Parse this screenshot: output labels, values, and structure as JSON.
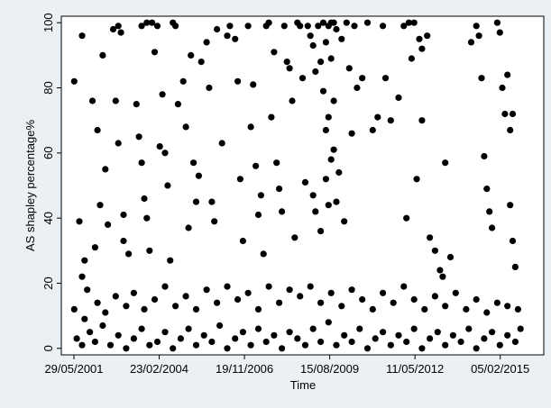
{
  "chart_data": {
    "type": "scatter",
    "title": "",
    "xlabel": "Time",
    "ylabel": "AS shapley percentage%",
    "x_type": "date",
    "x_ticks": [
      "29/05/2001",
      "23/02/2004",
      "19/11/2006",
      "15/08/2009",
      "11/05/2012",
      "05/02/2015"
    ],
    "y_ticks": [
      0,
      20,
      40,
      60,
      80,
      100
    ],
    "xlim": [
      "2001-01-01",
      "2016-06-30"
    ],
    "ylim": [
      -2,
      102
    ],
    "grid": false,
    "legend": "none",
    "marker_color": "#000000",
    "plot_background": "#ffffff",
    "figure_background": "#eaf0f3",
    "series": [
      {
        "name": "",
        "points": [
          [
            "2001-09-01",
            96
          ],
          [
            "2001-06-01",
            82
          ],
          [
            "2001-08-01",
            39
          ],
          [
            "2001-10-01",
            27
          ],
          [
            "2001-09-01",
            22
          ],
          [
            "2001-11-01",
            18
          ],
          [
            "2002-01-01",
            76
          ],
          [
            "2002-03-01",
            67
          ],
          [
            "2002-05-01",
            90
          ],
          [
            "2002-06-01",
            55
          ],
          [
            "2002-04-01",
            44
          ],
          [
            "2002-07-01",
            38
          ],
          [
            "2002-02-01",
            31
          ],
          [
            "2002-09-01",
            98
          ],
          [
            "2002-11-01",
            99
          ],
          [
            "2002-12-01",
            97
          ],
          [
            "2002-10-01",
            76
          ],
          [
            "2002-11-01",
            63
          ],
          [
            "2003-01-01",
            41
          ],
          [
            "2003-01-01",
            33
          ],
          [
            "2003-03-01",
            29
          ],
          [
            "2003-06-01",
            75
          ],
          [
            "2003-07-01",
            65
          ],
          [
            "2003-08-01",
            57
          ],
          [
            "2003-09-01",
            46
          ],
          [
            "2003-10-01",
            40
          ],
          [
            "2003-11-01",
            30
          ],
          [
            "2003-08-01",
            99
          ],
          [
            "2003-10-01",
            100
          ],
          [
            "2003-12-01",
            100
          ],
          [
            "2004-02-01",
            99
          ],
          [
            "2004-01-01",
            91
          ],
          [
            "2004-04-01",
            78
          ],
          [
            "2004-03-01",
            62
          ],
          [
            "2004-05-01",
            60
          ],
          [
            "2004-06-01",
            50
          ],
          [
            "2004-07-01",
            27
          ],
          [
            "2004-08-01",
            100
          ],
          [
            "2004-09-01",
            99
          ],
          [
            "2004-10-01",
            75
          ],
          [
            "2004-12-01",
            82
          ],
          [
            "2005-01-01",
            68
          ],
          [
            "2005-03-01",
            90
          ],
          [
            "2005-04-01",
            57
          ],
          [
            "2005-05-01",
            45
          ],
          [
            "2005-06-01",
            53
          ],
          [
            "2005-02-01",
            37
          ],
          [
            "2005-07-01",
            88
          ],
          [
            "2005-09-01",
            94
          ],
          [
            "2005-10-01",
            80
          ],
          [
            "2005-11-01",
            45
          ],
          [
            "2005-12-01",
            39
          ],
          [
            "2006-01-01",
            98
          ],
          [
            "2006-03-01",
            63
          ],
          [
            "2006-05-01",
            96
          ],
          [
            "2006-06-01",
            99
          ],
          [
            "2006-08-01",
            95
          ],
          [
            "2006-09-01",
            82
          ],
          [
            "2006-10-01",
            52
          ],
          [
            "2006-11-01",
            33
          ],
          [
            "2007-01-01",
            99
          ],
          [
            "2007-02-01",
            68
          ],
          [
            "2007-04-01",
            56
          ],
          [
            "2007-03-01",
            81
          ],
          [
            "2007-05-01",
            41
          ],
          [
            "2007-06-01",
            47
          ],
          [
            "2007-07-01",
            29
          ],
          [
            "2007-08-01",
            99
          ],
          [
            "2007-09-01",
            100
          ],
          [
            "2007-10-01",
            71
          ],
          [
            "2007-11-01",
            91
          ],
          [
            "2007-12-01",
            57
          ],
          [
            "2008-01-01",
            49
          ],
          [
            "2008-02-01",
            42
          ],
          [
            "2008-03-01",
            99
          ],
          [
            "2008-04-01",
            88
          ],
          [
            "2008-05-01",
            86
          ],
          [
            "2008-06-01",
            76
          ],
          [
            "2008-07-01",
            34
          ],
          [
            "2008-08-01",
            100
          ],
          [
            "2008-09-01",
            99
          ],
          [
            "2008-10-01",
            83
          ],
          [
            "2008-11-01",
            51
          ],
          [
            "2008-12-01",
            99
          ],
          [
            "2009-01-01",
            96
          ],
          [
            "2009-02-01",
            93
          ],
          [
            "2009-02-01",
            47
          ],
          [
            "2009-03-01",
            85
          ],
          [
            "2009-03-01",
            42
          ],
          [
            "2009-04-01",
            99
          ],
          [
            "2009-05-01",
            88
          ],
          [
            "2009-05-01",
            36
          ],
          [
            "2009-06-01",
            100
          ],
          [
            "2009-06-01",
            79
          ],
          [
            "2009-07-01",
            94
          ],
          [
            "2009-07-01",
            67
          ],
          [
            "2009-07-01",
            52
          ],
          [
            "2009-08-01",
            99
          ],
          [
            "2009-08-01",
            71
          ],
          [
            "2009-08-01",
            44
          ],
          [
            "2009-09-01",
            100
          ],
          [
            "2009-09-01",
            89
          ],
          [
            "2009-09-01",
            58
          ],
          [
            "2009-10-01",
            100
          ],
          [
            "2009-10-01",
            76
          ],
          [
            "2009-10-01",
            61
          ],
          [
            "2009-11-01",
            98
          ],
          [
            "2009-11-01",
            45
          ],
          [
            "2009-12-01",
            54
          ],
          [
            "2010-01-01",
            95
          ],
          [
            "2010-02-01",
            39
          ],
          [
            "2010-03-01",
            100
          ],
          [
            "2010-04-01",
            86
          ],
          [
            "2010-05-01",
            66
          ],
          [
            "2010-06-01",
            99
          ],
          [
            "2010-07-01",
            80
          ],
          [
            "2010-09-01",
            83
          ],
          [
            "2010-11-01",
            100
          ],
          [
            "2011-01-01",
            67
          ],
          [
            "2011-03-01",
            71
          ],
          [
            "2011-05-01",
            99
          ],
          [
            "2011-06-01",
            83
          ],
          [
            "2011-08-01",
            70
          ],
          [
            "2011-11-01",
            77
          ],
          [
            "2012-01-01",
            99
          ],
          [
            "2012-02-01",
            40
          ],
          [
            "2012-03-01",
            100
          ],
          [
            "2012-05-01",
            100
          ],
          [
            "2012-04-01",
            89
          ],
          [
            "2012-06-01",
            52
          ],
          [
            "2012-07-01",
            95
          ],
          [
            "2012-08-01",
            92
          ],
          [
            "2012-08-01",
            70
          ],
          [
            "2012-10-01",
            96
          ],
          [
            "2012-11-01",
            34
          ],
          [
            "2013-01-01",
            30
          ],
          [
            "2013-03-01",
            24
          ],
          [
            "2013-04-01",
            22
          ],
          [
            "2013-05-01",
            57
          ],
          [
            "2013-07-01",
            28
          ],
          [
            "2014-03-01",
            94
          ],
          [
            "2014-05-01",
            99
          ],
          [
            "2014-06-01",
            96
          ],
          [
            "2014-07-01",
            83
          ],
          [
            "2014-08-01",
            59
          ],
          [
            "2014-09-01",
            49
          ],
          [
            "2014-10-01",
            42
          ],
          [
            "2014-11-01",
            37
          ],
          [
            "2015-01-01",
            100
          ],
          [
            "2015-02-01",
            97
          ],
          [
            "2015-03-01",
            80
          ],
          [
            "2015-04-01",
            72
          ],
          [
            "2015-05-01",
            84
          ],
          [
            "2015-06-01",
            67
          ],
          [
            "2015-06-01",
            44
          ],
          [
            "2015-07-01",
            72
          ],
          [
            "2015-07-01",
            33
          ],
          [
            "2015-08-01",
            25
          ],
          [
            "2001-06-01",
            12
          ],
          [
            "2001-10-01",
            9
          ],
          [
            "2002-03-01",
            14
          ],
          [
            "2002-06-01",
            11
          ],
          [
            "2002-10-01",
            16
          ],
          [
            "2003-02-01",
            13
          ],
          [
            "2003-05-01",
            17
          ],
          [
            "2003-09-01",
            12
          ],
          [
            "2004-01-01",
            15
          ],
          [
            "2004-05-01",
            19
          ],
          [
            "2004-09-01",
            13
          ],
          [
            "2005-01-01",
            16
          ],
          [
            "2005-05-01",
            12
          ],
          [
            "2005-09-01",
            18
          ],
          [
            "2006-01-01",
            14
          ],
          [
            "2006-05-01",
            19
          ],
          [
            "2006-09-01",
            15
          ],
          [
            "2007-01-01",
            17
          ],
          [
            "2007-05-01",
            12
          ],
          [
            "2007-09-01",
            19
          ],
          [
            "2008-01-01",
            14
          ],
          [
            "2008-05-01",
            18
          ],
          [
            "2008-09-01",
            16
          ],
          [
            "2009-01-01",
            19
          ],
          [
            "2009-05-01",
            14
          ],
          [
            "2009-09-01",
            17
          ],
          [
            "2010-01-01",
            13
          ],
          [
            "2010-05-01",
            18
          ],
          [
            "2010-09-01",
            15
          ],
          [
            "2011-01-01",
            12
          ],
          [
            "2011-05-01",
            17
          ],
          [
            "2011-09-01",
            14
          ],
          [
            "2012-01-01",
            19
          ],
          [
            "2012-05-01",
            15
          ],
          [
            "2012-09-01",
            12
          ],
          [
            "2013-01-01",
            16
          ],
          [
            "2013-05-01",
            13
          ],
          [
            "2013-09-01",
            17
          ],
          [
            "2014-01-01",
            12
          ],
          [
            "2014-05-01",
            15
          ],
          [
            "2014-09-01",
            11
          ],
          [
            "2015-01-01",
            14
          ],
          [
            "2015-05-01",
            13
          ],
          [
            "2015-09-01",
            12
          ],
          [
            "2001-07-01",
            3
          ],
          [
            "2001-09-01",
            1
          ],
          [
            "2001-12-01",
            5
          ],
          [
            "2002-02-01",
            2
          ],
          [
            "2002-05-01",
            7
          ],
          [
            "2002-08-01",
            1
          ],
          [
            "2002-11-01",
            4
          ],
          [
            "2003-02-01",
            0
          ],
          [
            "2003-05-01",
            3
          ],
          [
            "2003-08-01",
            6
          ],
          [
            "2003-11-01",
            1
          ],
          [
            "2004-02-01",
            2
          ],
          [
            "2004-05-01",
            5
          ],
          [
            "2004-08-01",
            0
          ],
          [
            "2004-11-01",
            3
          ],
          [
            "2005-02-01",
            6
          ],
          [
            "2005-05-01",
            1
          ],
          [
            "2005-08-01",
            4
          ],
          [
            "2005-11-01",
            2
          ],
          [
            "2006-02-01",
            7
          ],
          [
            "2006-05-01",
            0
          ],
          [
            "2006-08-01",
            3
          ],
          [
            "2006-11-01",
            5
          ],
          [
            "2007-02-01",
            1
          ],
          [
            "2007-05-01",
            6
          ],
          [
            "2007-08-01",
            2
          ],
          [
            "2007-11-01",
            4
          ],
          [
            "2008-02-01",
            0
          ],
          [
            "2008-05-01",
            5
          ],
          [
            "2008-08-01",
            3
          ],
          [
            "2008-11-01",
            1
          ],
          [
            "2009-02-01",
            6
          ],
          [
            "2009-05-01",
            2
          ],
          [
            "2009-08-01",
            8
          ],
          [
            "2009-11-01",
            1
          ],
          [
            "2010-02-01",
            4
          ],
          [
            "2010-05-01",
            2
          ],
          [
            "2010-08-01",
            6
          ],
          [
            "2010-11-01",
            0
          ],
          [
            "2011-02-01",
            3
          ],
          [
            "2011-05-01",
            5
          ],
          [
            "2011-08-01",
            1
          ],
          [
            "2011-11-01",
            4
          ],
          [
            "2012-02-01",
            2
          ],
          [
            "2012-05-01",
            6
          ],
          [
            "2012-08-01",
            0
          ],
          [
            "2012-11-01",
            3
          ],
          [
            "2013-02-01",
            5
          ],
          [
            "2013-05-01",
            1
          ],
          [
            "2013-08-01",
            4
          ],
          [
            "2013-11-01",
            2
          ],
          [
            "2014-02-01",
            6
          ],
          [
            "2014-05-01",
            0
          ],
          [
            "2014-08-01",
            3
          ],
          [
            "2014-11-01",
            5
          ],
          [
            "2015-02-01",
            1
          ],
          [
            "2015-05-01",
            4
          ],
          [
            "2015-08-01",
            2
          ],
          [
            "2015-10-01",
            6
          ]
        ]
      }
    ]
  }
}
